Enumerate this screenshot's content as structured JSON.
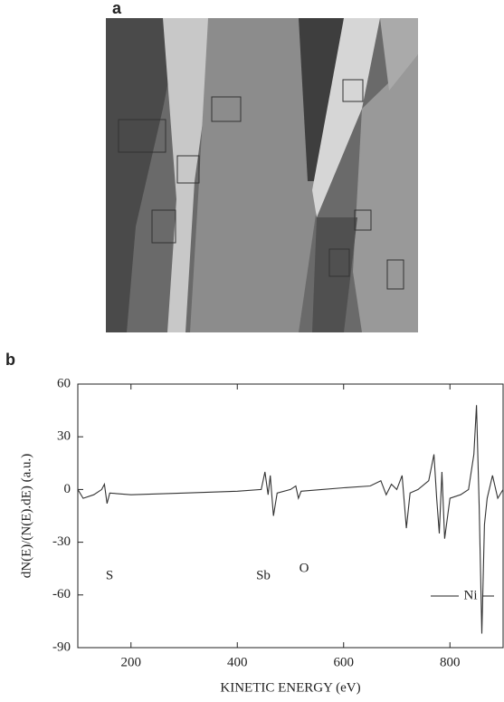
{
  "panels": [
    "a",
    "b"
  ],
  "chart_data": {
    "type": "line",
    "xlabel": "KINETIC ENERGY (eV)",
    "ylabel": "dN(E)/(N(E).dE)   (a.u.)",
    "x": [
      100,
      110,
      130,
      145,
      150,
      155,
      160,
      200,
      300,
      400,
      445,
      452,
      458,
      462,
      468,
      475,
      500,
      510,
      515,
      520,
      600,
      650,
      670,
      680,
      690,
      700,
      710,
      718,
      725,
      740,
      760,
      770,
      775,
      780,
      785,
      790,
      800,
      820,
      835,
      845,
      850,
      855,
      860,
      865,
      870,
      880,
      890,
      900
    ],
    "values": [
      0,
      -5,
      -3,
      0,
      3,
      -8,
      -2,
      -3,
      -2,
      -1,
      0,
      10,
      -3,
      8,
      -15,
      -2,
      0,
      2,
      -5,
      -1,
      1,
      2,
      5,
      -3,
      3,
      0,
      8,
      -22,
      -2,
      0,
      5,
      20,
      -5,
      -25,
      10,
      -28,
      -5,
      -3,
      0,
      20,
      48,
      -10,
      -82,
      -20,
      -5,
      8,
      -5,
      0
    ],
    "color": "#333333",
    "xlim": [
      100,
      900
    ],
    "ylim": [
      -90,
      60
    ],
    "xticks": [
      200,
      400,
      600,
      800
    ],
    "yticks": [
      -90,
      -60,
      -30,
      0,
      30,
      60
    ],
    "annotations": [
      "S",
      "Sb",
      "O",
      "Ni"
    ]
  }
}
